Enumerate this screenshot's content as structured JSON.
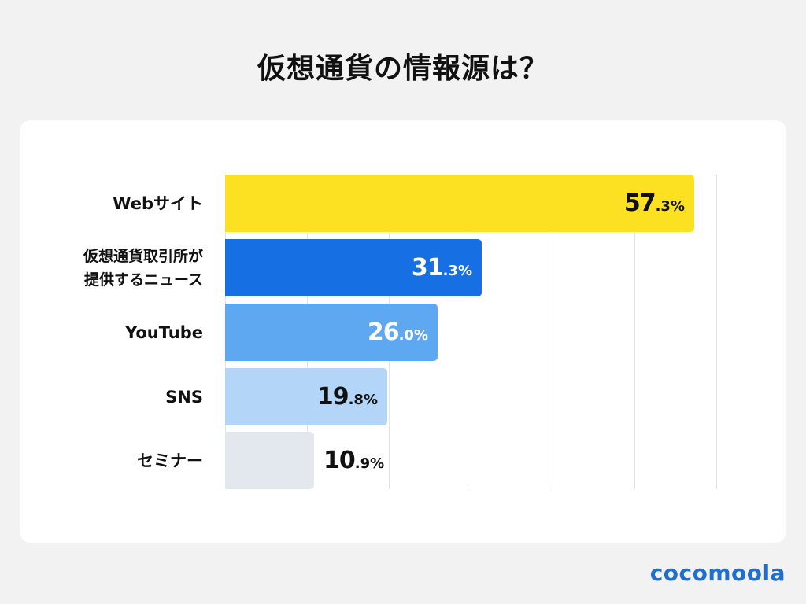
{
  "header": {
    "title": "仮想通貨の情報源は？"
  },
  "brand": {
    "logo_text": "cocomoola",
    "color": "#1f6fd1"
  },
  "chart_data": {
    "type": "bar",
    "orientation": "horizontal",
    "title": "仮想通貨の情報源は？",
    "xlabel": "",
    "ylabel": "",
    "unit": "%",
    "xlim": [
      0,
      60
    ],
    "grid": true,
    "grid_step": 10,
    "categories": [
      "Webサイト",
      "仮想通貨取引所が提供するニュース",
      "YouTube",
      "SNS",
      "セミナー"
    ],
    "values": [
      57.3,
      31.3,
      26.0,
      19.8,
      10.9
    ],
    "colors": [
      "#fbe122",
      "#1670e3",
      "#5ea8f2",
      "#b3d5f8",
      "#e3e8ef"
    ]
  },
  "bars": [
    {
      "label_lines": [
        "Webサイト"
      ],
      "int": "57",
      "dec": ".3%",
      "value": 57.3,
      "color": "#fbe122",
      "text_color": "#111111",
      "label_inside": true
    },
    {
      "label_lines": [
        "仮想通貨取引所が",
        "提供するニュース"
      ],
      "int": "31",
      "dec": ".3%",
      "value": 31.3,
      "color": "#1670e3",
      "text_color": "#ffffff",
      "label_inside": true
    },
    {
      "label_lines": [
        "YouTube"
      ],
      "int": "26",
      "dec": ".0%",
      "value": 26.0,
      "color": "#5ea8f2",
      "text_color": "#ffffff",
      "label_inside": true
    },
    {
      "label_lines": [
        "SNS"
      ],
      "int": "19",
      "dec": ".8%",
      "value": 19.8,
      "color": "#b3d5f8",
      "text_color": "#111111",
      "label_inside": true
    },
    {
      "label_lines": [
        "セミナー"
      ],
      "int": "10",
      "dec": ".9%",
      "value": 10.9,
      "color": "#e3e8ef",
      "text_color": "#111111",
      "label_inside": false
    }
  ]
}
